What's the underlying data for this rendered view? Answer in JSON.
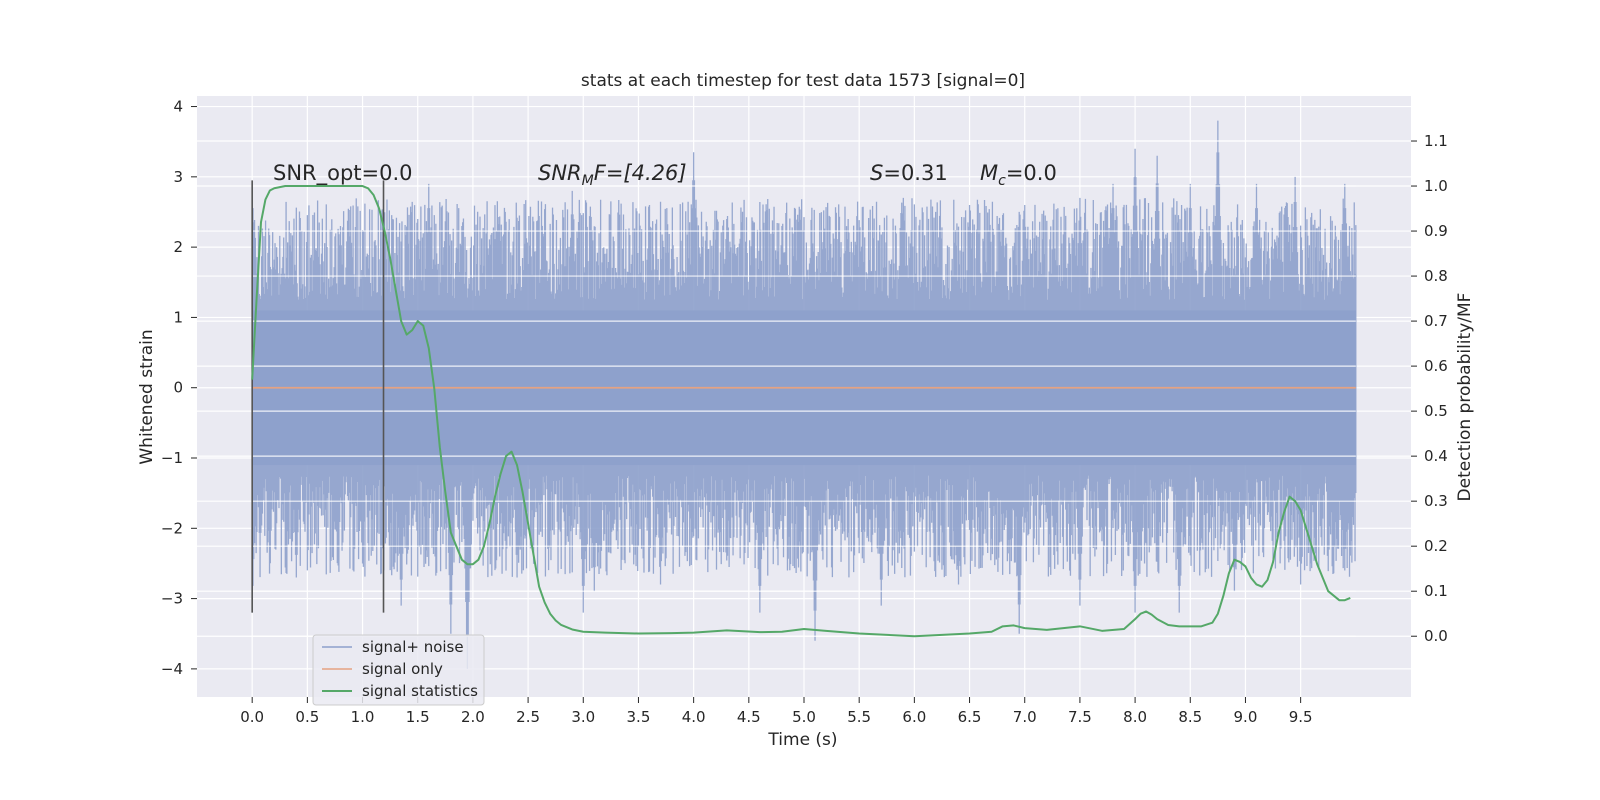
{
  "chart_data": {
    "type": "line",
    "title": "stats at each timestep for test data 1573 [signal=0]",
    "xlabel": "Time (s)",
    "ylabel": "Whitened strain",
    "y2label": "Detection probability/MF",
    "xlim": [
      -0.5,
      10.5
    ],
    "ylim": [
      -4.4,
      4.15
    ],
    "y2lim": [
      -0.135,
      1.2
    ],
    "x_ticks": [
      "0.0",
      "0.5",
      "1.0",
      "1.5",
      "2.0",
      "2.5",
      "3.0",
      "3.5",
      "4.0",
      "4.5",
      "5.0",
      "5.5",
      "6.0",
      "6.5",
      "7.0",
      "7.5",
      "8.0",
      "8.5",
      "9.0",
      "9.5"
    ],
    "y_ticks": [
      "−4",
      "−3",
      "−2",
      "−1",
      "0",
      "1",
      "2",
      "3",
      "4"
    ],
    "y2_ticks": [
      "0.0",
      "0.1",
      "0.2",
      "0.3",
      "0.4",
      "0.5",
      "0.6",
      "0.7",
      "0.8",
      "0.9",
      "1.0",
      "1.1"
    ],
    "grid": true,
    "legend_position": "lower-left",
    "annotations": {
      "snr_opt": "SNR_opt=0.0",
      "snr_mf_main": "SNR",
      "snr_mf_sub": "M",
      "snr_mf_rest": "F=[4.26]",
      "s_main": "S",
      "s_rest": "=0.31",
      "mc_main": "M",
      "mc_sub": "c",
      "mc_rest": "=0.0"
    },
    "vertical_markers_x": [
      0.0,
      1.19
    ],
    "series": [
      {
        "name": "signal+ noise",
        "color": "#8da0cb",
        "x_range": [
          0.0,
          10.0
        ],
        "band_y": [
          -1.1,
          1.1
        ],
        "peaks_upper": [
          [
            0.0,
            2.9
          ],
          [
            0.35,
            2.2
          ],
          [
            0.8,
            2.3
          ],
          [
            1.2,
            2.4
          ],
          [
            1.5,
            2.4
          ],
          [
            1.6,
            2.9
          ],
          [
            1.9,
            2.3
          ],
          [
            2.2,
            2.4
          ],
          [
            2.9,
            2.8
          ],
          [
            3.6,
            2.6
          ],
          [
            4.0,
            3.35
          ],
          [
            4.3,
            2.4
          ],
          [
            4.8,
            2.3
          ],
          [
            5.4,
            2.4
          ],
          [
            5.9,
            2.7
          ],
          [
            6.5,
            2.6
          ],
          [
            7.0,
            2.6
          ],
          [
            7.5,
            2.7
          ],
          [
            7.8,
            2.9
          ],
          [
            8.0,
            3.4
          ],
          [
            8.2,
            3.3
          ],
          [
            8.5,
            2.9
          ],
          [
            8.75,
            3.8
          ],
          [
            9.1,
            2.9
          ],
          [
            9.45,
            3.0
          ],
          [
            9.9,
            2.9
          ]
        ],
        "peaks_lower": [
          [
            0.0,
            -3.2
          ],
          [
            0.4,
            -2.7
          ],
          [
            1.0,
            -2.5
          ],
          [
            1.35,
            -3.1
          ],
          [
            1.8,
            -3.5
          ],
          [
            1.95,
            -4.0
          ],
          [
            2.4,
            -2.7
          ],
          [
            3.0,
            -3.2
          ],
          [
            3.1,
            -2.9
          ],
          [
            3.7,
            -2.8
          ],
          [
            4.6,
            -3.2
          ],
          [
            5.1,
            -3.6
          ],
          [
            5.7,
            -3.1
          ],
          [
            6.4,
            -2.8
          ],
          [
            6.95,
            -3.5
          ],
          [
            7.5,
            -3.1
          ],
          [
            8.0,
            -3.2
          ],
          [
            8.4,
            -3.2
          ],
          [
            8.9,
            -2.9
          ],
          [
            9.5,
            -2.8
          ],
          [
            9.9,
            -2.6
          ]
        ]
      },
      {
        "name": "signal only",
        "color": "#e5a282",
        "x": [
          0.0,
          10.0
        ],
        "y": [
          0.0,
          0.0
        ]
      },
      {
        "name": "signal statistics",
        "color": "#55a868",
        "axis": "right",
        "x": [
          0.0,
          0.04,
          0.08,
          0.12,
          0.16,
          0.2,
          0.3,
          0.4,
          0.5,
          0.6,
          0.7,
          0.8,
          0.9,
          1.0,
          1.05,
          1.1,
          1.15,
          1.2,
          1.25,
          1.3,
          1.35,
          1.4,
          1.45,
          1.5,
          1.55,
          1.6,
          1.65,
          1.7,
          1.75,
          1.8,
          1.85,
          1.9,
          1.95,
          2.0,
          2.05,
          2.1,
          2.15,
          2.2,
          2.25,
          2.3,
          2.35,
          2.4,
          2.45,
          2.5,
          2.55,
          2.6,
          2.65,
          2.7,
          2.75,
          2.8,
          2.9,
          3.0,
          3.2,
          3.5,
          3.8,
          4.0,
          4.3,
          4.6,
          4.8,
          5.0,
          5.2,
          5.5,
          6.0,
          6.5,
          6.6,
          6.7,
          6.8,
          6.9,
          7.0,
          7.2,
          7.5,
          7.7,
          7.9,
          8.0,
          8.05,
          8.1,
          8.15,
          8.2,
          8.3,
          8.4,
          8.5,
          8.6,
          8.7,
          8.75,
          8.8,
          8.85,
          8.9,
          8.95,
          9.0,
          9.05,
          9.1,
          9.15,
          9.2,
          9.25,
          9.3,
          9.35,
          9.4,
          9.45,
          9.5,
          9.55,
          9.6,
          9.65,
          9.7,
          9.75,
          9.8,
          9.85,
          9.9,
          9.95
        ],
        "y": [
          0.57,
          0.75,
          0.92,
          0.97,
          0.99,
          0.995,
          1.0,
          1.0,
          1.0,
          1.0,
          1.0,
          1.0,
          1.0,
          1.0,
          0.995,
          0.98,
          0.95,
          0.9,
          0.84,
          0.77,
          0.7,
          0.67,
          0.68,
          0.7,
          0.69,
          0.64,
          0.55,
          0.42,
          0.32,
          0.23,
          0.2,
          0.17,
          0.16,
          0.16,
          0.17,
          0.2,
          0.25,
          0.31,
          0.36,
          0.4,
          0.41,
          0.38,
          0.32,
          0.25,
          0.18,
          0.11,
          0.075,
          0.05,
          0.035,
          0.025,
          0.015,
          0.01,
          0.008,
          0.006,
          0.007,
          0.008,
          0.013,
          0.009,
          0.01,
          0.016,
          0.012,
          0.006,
          0.0,
          0.006,
          0.008,
          0.01,
          0.022,
          0.024,
          0.018,
          0.014,
          0.022,
          0.012,
          0.016,
          0.038,
          0.05,
          0.055,
          0.048,
          0.038,
          0.025,
          0.022,
          0.022,
          0.022,
          0.03,
          0.05,
          0.09,
          0.14,
          0.17,
          0.165,
          0.155,
          0.13,
          0.115,
          0.11,
          0.125,
          0.165,
          0.23,
          0.275,
          0.31,
          0.3,
          0.28,
          0.24,
          0.2,
          0.16,
          0.13,
          0.1,
          0.09,
          0.08,
          0.08,
          0.085
        ]
      }
    ]
  }
}
